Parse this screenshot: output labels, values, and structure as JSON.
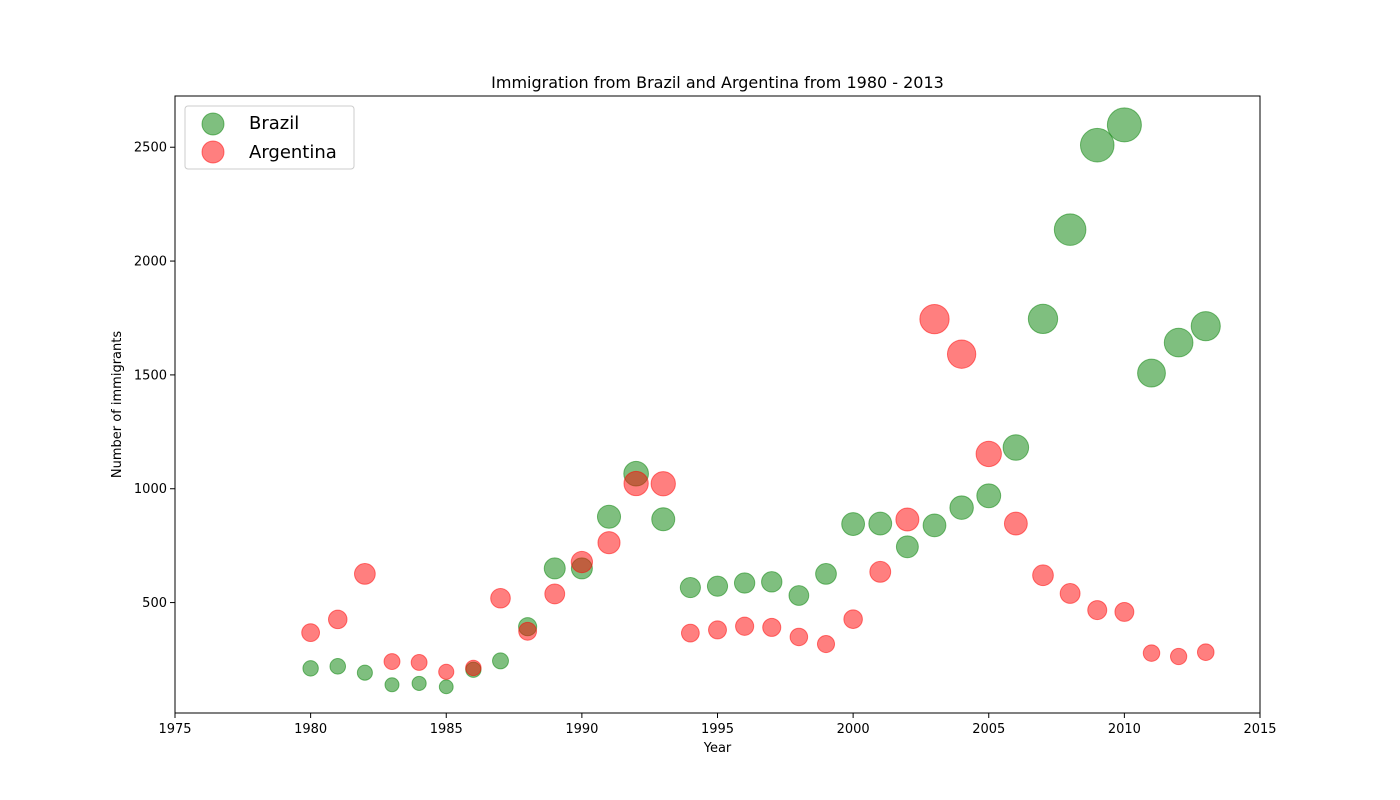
{
  "chart_data": {
    "type": "scatter",
    "title": "Immigration from Brazil and Argentina from 1980 - 2013",
    "xlabel": "Year",
    "ylabel": "Number of immigrants",
    "xlim": [
      1975,
      2015
    ],
    "ylim": [
      15,
      2725
    ],
    "x_ticks": [
      1975,
      1980,
      1985,
      1990,
      1995,
      2000,
      2005,
      2010,
      2015
    ],
    "y_ticks": [
      500,
      1000,
      1500,
      2000,
      2500
    ],
    "legend_position": "top-left",
    "grid": false,
    "marker_size": "proportional to value",
    "series": [
      {
        "name": "Brazil",
        "color": "#008000",
        "x": [
          1980,
          1981,
          1982,
          1983,
          1984,
          1985,
          1986,
          1987,
          1988,
          1989,
          1990,
          1991,
          1992,
          1993,
          1994,
          1995,
          1996,
          1997,
          1998,
          1999,
          2000,
          2001,
          2002,
          2003,
          2004,
          2005,
          2006,
          2007,
          2008,
          2009,
          2010,
          2011,
          2012,
          2013
        ],
        "y": [
          211,
          220,
          192,
          139,
          145,
          130,
          205,
          244,
          394,
          650,
          650,
          877,
          1066,
          866,
          566,
          572,
          586,
          591,
          531,
          626,
          845,
          847,
          745,
          839,
          917,
          969,
          1181,
          1746,
          2138,
          2509,
          2598,
          1508,
          1642,
          1714
        ]
      },
      {
        "name": "Argentina",
        "color": "#ff0000",
        "x": [
          1980,
          1981,
          1982,
          1983,
          1984,
          1985,
          1986,
          1987,
          1988,
          1989,
          1990,
          1991,
          1992,
          1993,
          1994,
          1995,
          1996,
          1997,
          1998,
          1999,
          2000,
          2001,
          2002,
          2003,
          2004,
          2005,
          2006,
          2007,
          2008,
          2009,
          2010,
          2011,
          2012,
          2013
        ],
        "y": [
          368,
          426,
          626,
          241,
          237,
          196,
          213,
          519,
          374,
          538,
          678,
          763,
          1023,
          1022,
          366,
          380,
          396,
          391,
          349,
          318,
          427,
          635,
          865,
          1745,
          1591,
          1153,
          847,
          620,
          540,
          467,
          459,
          278,
          263,
          282
        ]
      }
    ]
  }
}
